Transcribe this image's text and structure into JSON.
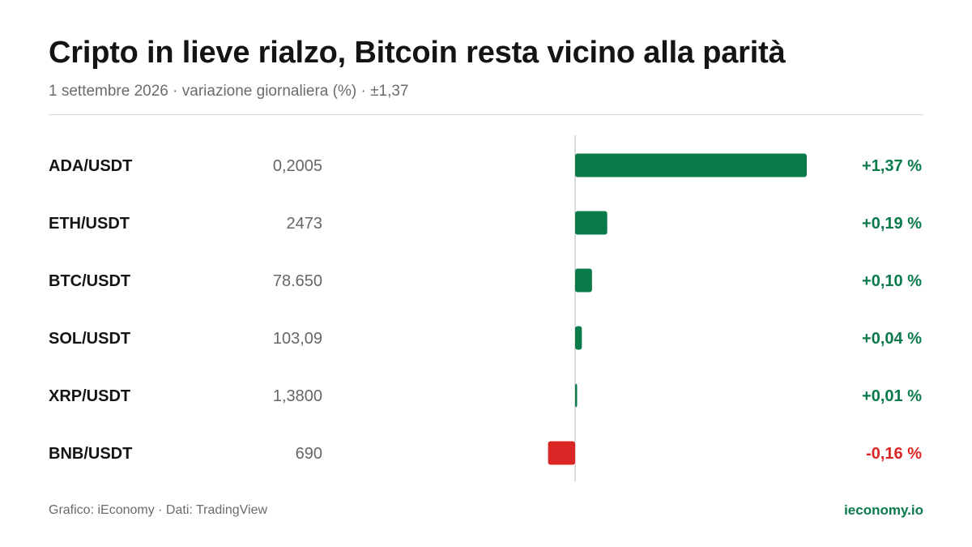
{
  "header": {
    "title": "Cripto in lieve rialzo, Bitcoin resta vicino alla parità",
    "subtitle": "1 settembre 2026 · variazione giornaliera (%) · ±1,37"
  },
  "footer": {
    "credit": "Grafico: iEconomy · Dati: TradingView",
    "brand": "ieconomy.io"
  },
  "colors": {
    "positive": "#0b7a4b",
    "negative": "#dc2626",
    "zero_line": "#cfcfcf"
  },
  "chart_data": {
    "type": "bar",
    "orientation": "horizontal",
    "categories": [
      "ADA/USDT",
      "ETH/USDT",
      "BTC/USDT",
      "SOL/USDT",
      "XRP/USDT",
      "BNB/USDT"
    ],
    "prices": [
      "0,2005",
      "2473",
      "78.650",
      "103,09",
      "1,3800",
      "690"
    ],
    "values": [
      1.37,
      0.19,
      0.1,
      0.04,
      0.01,
      -0.16
    ],
    "value_labels": [
      "+1,37 %",
      "+0,19 %",
      "+0,10 %",
      "+0,04 %",
      "+0,01 %",
      "-0,16 %"
    ],
    "xlim": [
      -1.37,
      1.37
    ],
    "grid": false
  }
}
